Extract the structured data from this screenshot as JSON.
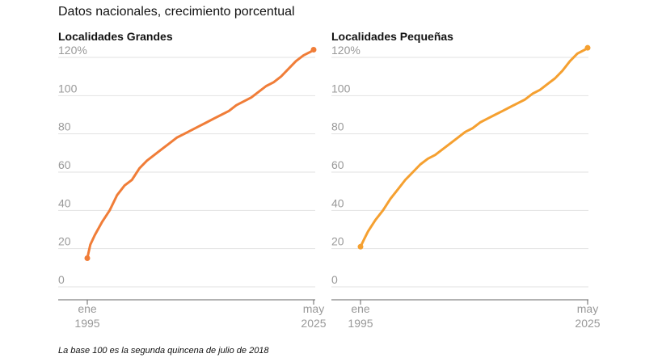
{
  "header": {
    "title": "Datos nacionales, crecimiento porcentual"
  },
  "footer": {
    "note": "La base 100 es la segunda quincena de julio de 2018"
  },
  "chart_data": [
    {
      "type": "line",
      "title": "Localidades Grandes",
      "color": "#f07d38",
      "ylim": [
        0,
        120
      ],
      "y_ticks": [
        0,
        20,
        40,
        60,
        80,
        100,
        120
      ],
      "y_tick_labels": [
        "0",
        "20",
        "40",
        "60",
        "80",
        "100",
        "120%"
      ],
      "x_tick_labels": [
        {
          "month": "ene",
          "year": "1995"
        },
        {
          "month": "may",
          "year": "2025"
        }
      ],
      "xlim": [
        1995.0,
        2025.37
      ],
      "grid": true,
      "series": [
        {
          "x": [
            1995.0,
            1995.4,
            1996.0,
            1997.0,
            1998.0,
            1999.0,
            2000.0,
            2001.0,
            2002.0,
            2003.0,
            2004.0,
            2005.0,
            2006.0,
            2007.0,
            2008.0,
            2009.0,
            2010.0,
            2011.0,
            2012.0,
            2013.0,
            2014.0,
            2015.0,
            2016.0,
            2017.0,
            2018.0,
            2019.0,
            2020.0,
            2021.0,
            2022.0,
            2023.0,
            2024.0,
            2025.0,
            2025.37
          ],
          "y": [
            15,
            22,
            27,
            34,
            40,
            48,
            53,
            56,
            62,
            66,
            69,
            72,
            75,
            78,
            80,
            82,
            84,
            86,
            88,
            90,
            92,
            95,
            97,
            99,
            102,
            105,
            107,
            110,
            114,
            118,
            121,
            123,
            124
          ]
        }
      ]
    },
    {
      "type": "line",
      "title": "Localidades Pequeñas",
      "color": "#f5a030",
      "ylim": [
        0,
        120
      ],
      "y_ticks": [
        0,
        20,
        40,
        60,
        80,
        100,
        120
      ],
      "y_tick_labels": [
        "0",
        "20",
        "40",
        "60",
        "80",
        "100",
        "120%"
      ],
      "x_tick_labels": [
        {
          "month": "ene",
          "year": "1995"
        },
        {
          "month": "may",
          "year": "2025"
        }
      ],
      "xlim": [
        1995.0,
        2025.37
      ],
      "grid": true,
      "series": [
        {
          "x": [
            1995.0,
            1995.5,
            1996.0,
            1997.0,
            1998.0,
            1999.0,
            2000.0,
            2001.0,
            2002.0,
            2003.0,
            2004.0,
            2005.0,
            2006.0,
            2007.0,
            2008.0,
            2009.0,
            2010.0,
            2011.0,
            2012.0,
            2013.0,
            2014.0,
            2015.0,
            2016.0,
            2017.0,
            2018.0,
            2019.0,
            2020.0,
            2021.0,
            2022.0,
            2023.0,
            2024.0,
            2025.0,
            2025.37
          ],
          "y": [
            21,
            25,
            29,
            35,
            40,
            46,
            51,
            56,
            60,
            64,
            67,
            69,
            72,
            75,
            78,
            81,
            83,
            86,
            88,
            90,
            92,
            94,
            96,
            98,
            101,
            103,
            106,
            109,
            113,
            118,
            122,
            124,
            125
          ]
        }
      ]
    }
  ]
}
